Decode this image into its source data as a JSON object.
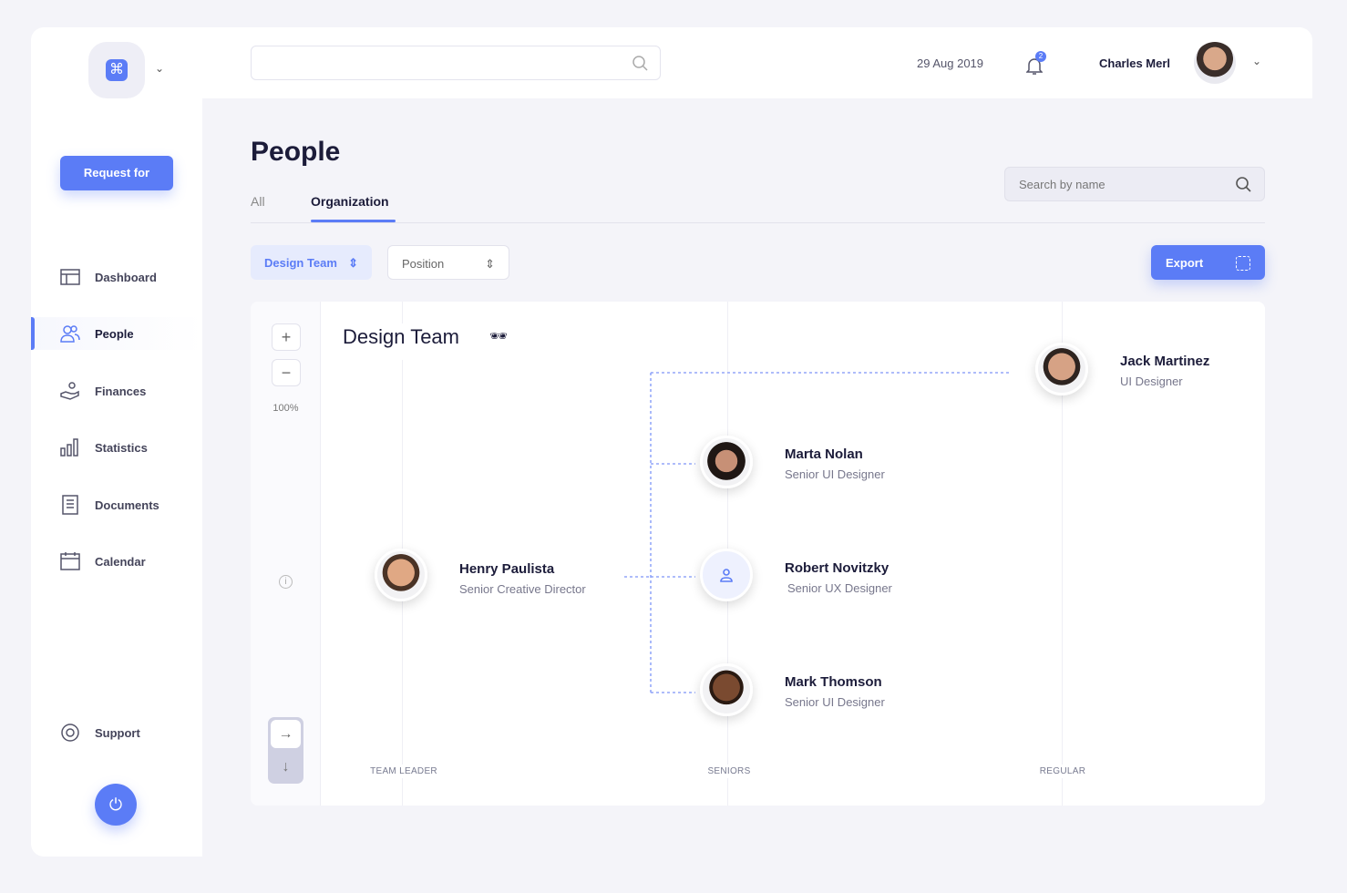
{
  "sidebar": {
    "request_label": "Request for",
    "items": [
      {
        "label": "Dashboard",
        "icon": "layout-icon"
      },
      {
        "label": "People",
        "icon": "people-icon",
        "active": true
      },
      {
        "label": "Finances",
        "icon": "hand-coins-icon"
      },
      {
        "label": "Statistics",
        "icon": "bar-chart-icon"
      },
      {
        "label": "Documents",
        "icon": "document-icon"
      },
      {
        "label": "Calendar",
        "icon": "calendar-icon"
      }
    ],
    "support": "Support"
  },
  "header": {
    "date": "29 Aug 2019",
    "notifications": "2",
    "user": "Charles Merl"
  },
  "page": {
    "title": "People",
    "tabs": [
      "All",
      "Organization"
    ],
    "active_tab": "Organization",
    "search_placeholder": "Search by name",
    "filter_team": "Design Team",
    "filter_position": "Position",
    "export": "Export"
  },
  "chart": {
    "title": "Design Team",
    "emoji": "🕶",
    "zoom": "100%",
    "columns": [
      "TEAM LEADER",
      "SENIORS",
      "REGULAR"
    ],
    "people": [
      {
        "name": "Henry Paulista",
        "role": "Senior Creative Director"
      },
      {
        "name": "Marta Nolan",
        "role": "Senior UI Designer"
      },
      {
        "name": "Robert Novitzky",
        "role": "Senior UX Designer"
      },
      {
        "name": "Mark Thomson",
        "role": "Senior UI Designer"
      },
      {
        "name": "Jack Martinez",
        "role": "UI Designer"
      }
    ]
  },
  "colors": {
    "accent": "#5b7cf6",
    "background": "#f4f4f9"
  }
}
